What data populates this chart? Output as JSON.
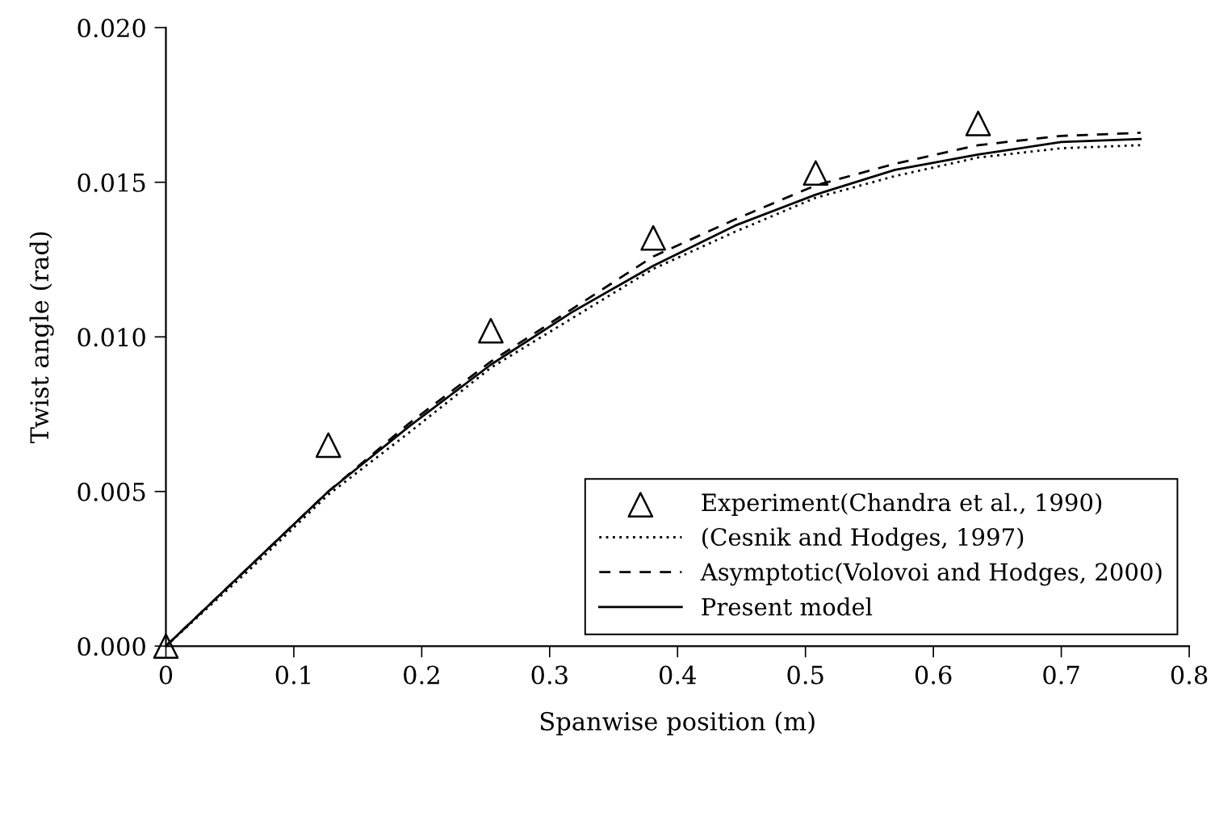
{
  "chart_data": {
    "type": "line",
    "xlabel": "Spanwise position (m)",
    "ylabel": "Twist angle (rad)",
    "xlim": [
      0,
      0.8
    ],
    "xticks": [
      {
        "value": 0,
        "label": "0"
      },
      0.1,
      0.2,
      0.3,
      0.4,
      0.5,
      0.6,
      0.7,
      0.8
    ],
    "ylim": [
      0,
      0.02
    ],
    "yticks": [
      {
        "value": 0,
        "label": "0.000"
      },
      {
        "value": 0.005,
        "label": "0.005"
      },
      {
        "value": 0.01,
        "label": "0.010"
      },
      {
        "value": 0.015,
        "label": "0.015"
      },
      {
        "value": 0.02,
        "label": "0.020"
      }
    ],
    "grid": false,
    "legend": "bottom right",
    "series": [
      {
        "name": "Experiment(Chandra et al., 1990)",
        "type": "scatter",
        "marker": "triangle",
        "color": "#000000",
        "x": [
          0,
          0.127,
          0.254,
          0.381,
          0.508,
          0.635
        ],
        "values": [
          0,
          0.0065,
          0.0102,
          0.0132,
          0.0153,
          0.0169
        ]
      },
      {
        "name": "(Cesnik and Hodges, 1997)",
        "line_style": "dotted",
        "color": "#000000",
        "x": [
          0,
          0.0635,
          0.127,
          0.19,
          0.254,
          0.3175,
          0.381,
          0.445,
          0.508,
          0.57,
          0.635,
          0.7,
          0.762
        ],
        "values": [
          0,
          0.0024,
          0.0049,
          0.0069,
          0.009,
          0.0106,
          0.0122,
          0.0134,
          0.0145,
          0.0152,
          0.0158,
          0.0161,
          0.0162
        ]
      },
      {
        "name": "Asymptotic(Volovoi and Hodges, 2000)",
        "line_style": "dashed",
        "color": "#000000",
        "x": [
          0,
          0.0635,
          0.127,
          0.19,
          0.254,
          0.3175,
          0.381,
          0.445,
          0.508,
          0.57,
          0.635,
          0.7,
          0.762
        ],
        "values": [
          0,
          0.0025,
          0.005,
          0.0072,
          0.0092,
          0.0109,
          0.0126,
          0.0138,
          0.0149,
          0.0156,
          0.0162,
          0.0165,
          0.0166
        ]
      },
      {
        "name": "Present model",
        "line_style": "solid",
        "color": "#000000",
        "x": [
          0,
          0.0635,
          0.127,
          0.19,
          0.254,
          0.3175,
          0.381,
          0.445,
          0.508,
          0.57,
          0.635,
          0.7,
          0.762
        ],
        "values": [
          0,
          0.0025,
          0.005,
          0.0071,
          0.0091,
          0.0108,
          0.0123,
          0.0136,
          0.0146,
          0.0154,
          0.0159,
          0.0163,
          0.0164
        ]
      }
    ]
  }
}
